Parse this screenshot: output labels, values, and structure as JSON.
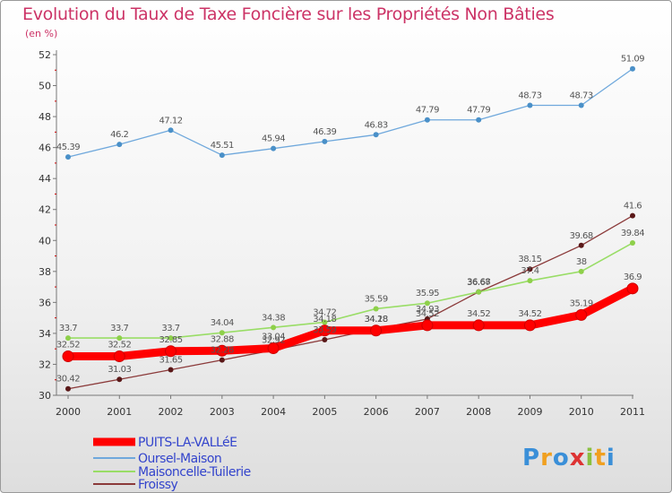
{
  "title": "Evolution du Taux de Taxe Foncière sur les Propriétés Non Bâties",
  "subtitle": "(en %)",
  "brand": "Proxiti",
  "chart_data": {
    "type": "line",
    "title": "Evolution du Taux de Taxe Foncière sur les Propriétés Non Bâties",
    "ylabel": "(en %)",
    "x": [
      "2000",
      "2001",
      "2002",
      "2003",
      "2004",
      "2005",
      "2006",
      "2007",
      "2008",
      "2009",
      "2010",
      "2011"
    ],
    "ylim": [
      30,
      52
    ],
    "yticks": [
      "30",
      "32",
      "34",
      "36",
      "38",
      "40",
      "42",
      "44",
      "46",
      "48",
      "50",
      "52"
    ],
    "grid": false,
    "legend": "bottom-left",
    "series": [
      {
        "name": "PUITS-LA-VALLéE",
        "color": "#ff0000",
        "values": [
          32.52,
          32.52,
          32.85,
          32.88,
          33.04,
          34.18,
          34.18,
          34.52,
          34.52,
          34.52,
          35.19,
          36.9
        ],
        "labels": [
          "32.52",
          "32.52",
          "32.85",
          "32.88",
          "33.04",
          "34.18",
          "34.18",
          "34.52",
          "34.52",
          "34.52",
          "35.19",
          "36.9"
        ]
      },
      {
        "name": "Oursel-Maison",
        "color": "#6fa8dc",
        "values": [
          45.39,
          46.2,
          47.12,
          45.51,
          45.94,
          46.39,
          46.83,
          47.79,
          47.79,
          48.73,
          48.73,
          51.09
        ],
        "labels": [
          "45.39",
          "46.2",
          "47.12",
          "45.51",
          "45.94",
          "46.39",
          "46.83",
          "47.79",
          "47.79",
          "48.73",
          "48.73",
          "51.09"
        ]
      },
      {
        "name": "Maisoncelle-Tuilerie",
        "color": "#99dd66",
        "values": [
          33.7,
          33.7,
          33.7,
          34.04,
          34.38,
          34.72,
          35.59,
          35.95,
          36.67,
          37.4,
          38.0,
          39.84
        ],
        "labels": [
          "33.7",
          "33.7",
          "33.7",
          "34.04",
          "34.38",
          "34.72",
          "35.59",
          "35.95",
          "36.67",
          "37.4",
          "38",
          "39.84"
        ]
      },
      {
        "name": "Froissy",
        "color": "#8b3a3a",
        "values": [
          30.42,
          31.03,
          31.65,
          32.28,
          32.92,
          33.59,
          34.28,
          34.93,
          36.68,
          38.15,
          39.68,
          41.6
        ],
        "labels": [
          "30.42",
          "31.03",
          "31.65",
          "32.28",
          "32.92",
          "33.59",
          "34.28",
          "34.93",
          "36.68",
          "38.15",
          "39.68",
          "41.6"
        ]
      }
    ]
  }
}
